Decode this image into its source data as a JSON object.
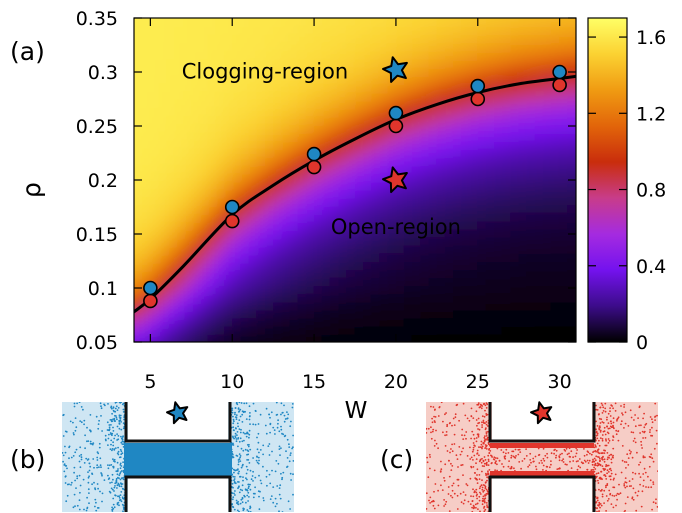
{
  "panel_labels": {
    "a": "(a)",
    "b": "(b)",
    "c": "(c)"
  },
  "chart_data": {
    "type": "heatmap",
    "xlabel": "W",
    "ylabel": "ρ",
    "xlim": [
      4,
      31
    ],
    "ylim": [
      0.05,
      0.35
    ],
    "x_ticks": [
      5,
      10,
      15,
      20,
      25,
      30
    ],
    "x_tick_labels": [
      "5",
      "10",
      "15",
      "20",
      "25",
      "30"
    ],
    "y_ticks": [
      0.05,
      0.1,
      0.15,
      0.2,
      0.25,
      0.3,
      0.35
    ],
    "y_tick_labels": [
      "0.05",
      "0.1",
      "0.15",
      "0.2",
      "0.25",
      "0.3",
      "0.35"
    ],
    "colorbar": {
      "min": 0,
      "max": 1.7,
      "ticks": [
        0,
        0.4,
        0.8,
        1.2,
        1.6
      ],
      "tick_labels": [
        "0",
        "0.4",
        "0.8",
        "1.2",
        "1.6"
      ],
      "colormap": [
        "#000000",
        "#3c0c8a",
        "#7412ee",
        "#a52be0",
        "#c83c8a",
        "#c92d0c",
        "#e2650a",
        "#f09b12",
        "#fbd232",
        "#ffff66"
      ]
    },
    "boundary_curve": {
      "x": [
        4,
        5,
        7,
        10,
        12.5,
        15,
        17.5,
        20,
        22.5,
        25,
        27.5,
        30,
        31
      ],
      "y": [
        0.078,
        0.09,
        0.12,
        0.168,
        0.195,
        0.218,
        0.238,
        0.256,
        0.27,
        0.281,
        0.289,
        0.294,
        0.296
      ]
    },
    "series": [
      {
        "color": "#1f87c3",
        "x": [
          5,
          10,
          15,
          20,
          25,
          30
        ],
        "y": [
          0.1,
          0.175,
          0.224,
          0.262,
          0.287,
          0.3
        ]
      },
      {
        "color": "#e0352c",
        "x": [
          5,
          10,
          15,
          20,
          25,
          30
        ],
        "y": [
          0.088,
          0.162,
          0.212,
          0.25,
          0.275,
          0.288
        ]
      }
    ],
    "markers": [
      {
        "shape": "star",
        "color": "#1f87c3",
        "x": 20,
        "y": 0.302
      },
      {
        "shape": "star",
        "color": "#e0352c",
        "x": 20,
        "y": 0.2
      }
    ],
    "annotations": [
      {
        "text": "Clogging-region",
        "x": 12,
        "y": 0.294
      },
      {
        "text": "Open-region",
        "x": 20,
        "y": 0.15
      }
    ]
  },
  "insets": [
    {
      "id": "b",
      "particle_color": "#1f87c3",
      "background_color": "#cfe6f3",
      "star_color": "#1f87c3"
    },
    {
      "id": "c",
      "particle_color": "#e0352c",
      "background_color": "#f6cdc6",
      "star_color": "#e0352c"
    }
  ]
}
